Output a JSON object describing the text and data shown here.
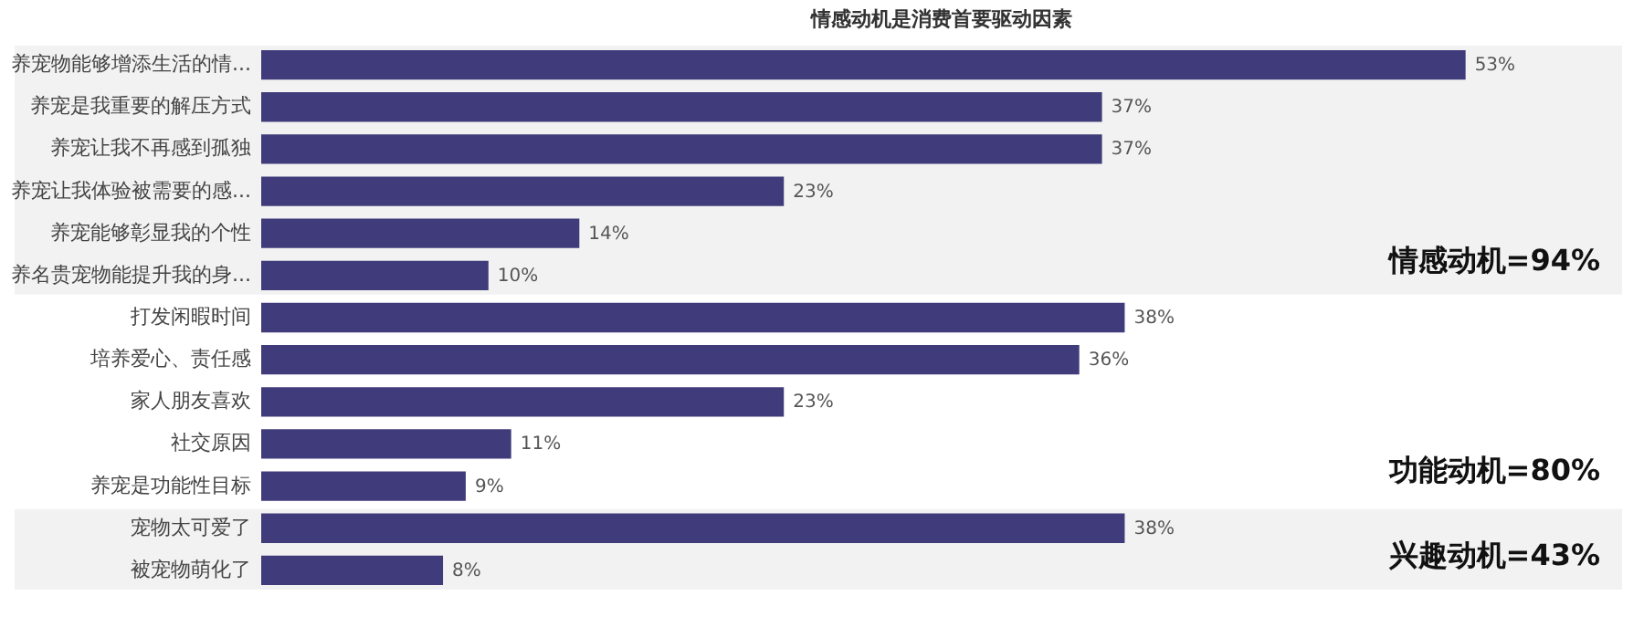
{
  "chart_data": {
    "type": "bar",
    "orientation": "horizontal",
    "title": "情感动机是消费首要驱动因素",
    "categories": [
      "养宠物能够增添生活的情...",
      "养宠是我重要的解压方式",
      "养宠让我不再感到孤独",
      "养宠让我体验被需要的感...",
      "养宠能够彰显我的个性",
      "养名贵宠物能提升我的身...",
      "打发闲暇时间",
      "培养爱心、责任感",
      "家人朋友喜欢",
      "社交原因",
      "养宠是功能性目标",
      "宠物太可爱了",
      "被宠物萌化了"
    ],
    "series": [
      {
        "color": "#403b7a",
        "values": [
          53,
          37,
          37,
          23,
          14,
          10,
          38,
          36,
          23,
          11,
          9,
          38,
          8
        ],
        "value_labels": [
          "53%",
          "37%",
          "37%",
          "23%",
          "14%",
          "10%",
          "38%",
          "36%",
          "23%",
          "11%",
          "9%",
          "38%",
          "8%"
        ]
      }
    ],
    "bands": [
      {
        "axis": "y",
        "from": "养宠物能够增添生活的情...",
        "to": "养名贵宠物能提升我的身...",
        "label": "情感动机=94%",
        "color": "#f2f2f2"
      },
      {
        "axis": "y",
        "from": "宠物太可爱了",
        "to": "被宠物萌化了",
        "label": "兴趣动机=43%",
        "color": "#f2f2f2"
      }
    ],
    "annotations": [
      "功能动机=80%"
    ]
  }
}
